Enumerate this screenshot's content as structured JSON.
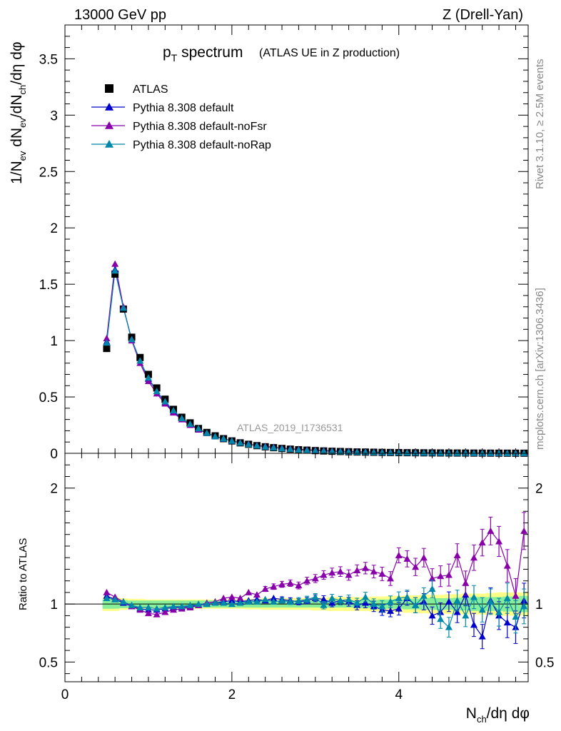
{
  "header": {
    "energy": "13000 GeV pp",
    "process": "Z (Drell-Yan)"
  },
  "side_labels": {
    "rivet": "Rivet 3.1.10, ≥ 2.5M events",
    "source": "mcplots.cern.ch [arXiv:1306.3436]"
  },
  "chart_data": [
    {
      "type": "scatter",
      "title_main": "p",
      "title_sub": "T",
      "title_word": " spectrum",
      "subtitle": "(ATLAS UE in Z production)",
      "analysis_id": "ATLAS_2019_I1736531",
      "ylabel_parts": [
        "1/N",
        "ev",
        " dN",
        "ev",
        "/dN",
        "ch",
        "/dη dφ"
      ],
      "xlim": [
        0,
        5.55
      ],
      "ylim": [
        0,
        3.8
      ],
      "yticks": [
        0,
        0.5,
        1,
        1.5,
        2,
        2.5,
        3,
        3.5
      ],
      "ytick_labels": [
        "0",
        "0.5",
        "1",
        "1.5",
        "2",
        "2.5",
        "3",
        "3.5"
      ],
      "x": [
        0.5,
        0.6,
        0.7,
        0.8,
        0.9,
        1.0,
        1.1,
        1.2,
        1.3,
        1.4,
        1.5,
        1.6,
        1.7,
        1.8,
        1.9,
        2.0,
        2.1,
        2.2,
        2.3,
        2.4,
        2.5,
        2.6,
        2.7,
        2.8,
        2.9,
        3.0,
        3.1,
        3.2,
        3.3,
        3.4,
        3.5,
        3.6,
        3.7,
        3.8,
        3.9,
        4.0,
        4.1,
        4.2,
        4.3,
        4.4,
        4.5,
        4.6,
        4.7,
        4.8,
        4.9,
        5.0,
        5.1,
        5.2,
        5.3,
        5.4,
        5.5
      ],
      "series": [
        {
          "name": "ATLAS",
          "color": "#000000",
          "marker": "square",
          "values": [
            0.93,
            1.59,
            1.28,
            1.03,
            0.85,
            0.7,
            0.58,
            0.48,
            0.39,
            0.32,
            0.27,
            0.22,
            0.185,
            0.155,
            0.13,
            0.11,
            0.093,
            0.08,
            0.068,
            0.058,
            0.05,
            0.043,
            0.037,
            0.032,
            0.028,
            0.024,
            0.021,
            0.018,
            0.016,
            0.014,
            0.012,
            0.011,
            0.0095,
            0.0083,
            0.0073,
            0.0064,
            0.0056,
            0.0049,
            0.0043,
            0.0038,
            0.0033,
            0.0029,
            0.0026,
            0.0023,
            0.002,
            0.0018,
            0.0016,
            0.0014,
            0.0012,
            0.0011,
            0.001
          ]
        },
        {
          "name": "Pythia 8.308 default",
          "color": "#0000cc",
          "marker": "triangle",
          "values": [
            0.99,
            1.63,
            1.29,
            1.01,
            0.82,
            0.66,
            0.55,
            0.45,
            0.37,
            0.31,
            0.26,
            0.21,
            0.18,
            0.15,
            0.128,
            0.11,
            0.093,
            0.08,
            0.069,
            0.059,
            0.051,
            0.044,
            0.038,
            0.033,
            0.029,
            0.025,
            0.022,
            0.019,
            0.016,
            0.014,
            0.012,
            0.011,
            0.0093,
            0.008,
            0.0071,
            0.0062,
            0.0055,
            0.0048,
            0.0042,
            0.0037,
            0.0032,
            0.0028,
            0.0025,
            0.0022,
            0.0019,
            0.0017,
            0.0015,
            0.0013,
            0.0011,
            0.001,
            0.0009
          ]
        },
        {
          "name": "Pythia 8.308 default-noFsr",
          "color": "#8800aa",
          "marker": "triangle",
          "values": [
            1.02,
            1.68,
            1.3,
            1.0,
            0.8,
            0.64,
            0.53,
            0.44,
            0.36,
            0.3,
            0.25,
            0.21,
            0.18,
            0.15,
            0.13,
            0.11,
            0.095,
            0.082,
            0.071,
            0.062,
            0.054,
            0.047,
            0.041,
            0.036,
            0.032,
            0.028,
            0.025,
            0.022,
            0.019,
            0.017,
            0.015,
            0.013,
            0.012,
            0.01,
            0.009,
            0.008,
            0.007,
            0.006,
            0.0055,
            0.0048,
            0.0042,
            0.0037,
            0.0033,
            0.0029,
            0.0026,
            0.0023,
            0.002,
            0.0018,
            0.0016,
            0.0014,
            0.0013
          ]
        },
        {
          "name": "Pythia 8.308 default-noRap",
          "color": "#0088aa",
          "marker": "triangle",
          "values": [
            0.98,
            1.62,
            1.29,
            1.01,
            0.82,
            0.67,
            0.55,
            0.46,
            0.38,
            0.31,
            0.26,
            0.22,
            0.18,
            0.15,
            0.13,
            0.11,
            0.093,
            0.079,
            0.068,
            0.058,
            0.05,
            0.043,
            0.037,
            0.032,
            0.028,
            0.024,
            0.021,
            0.018,
            0.016,
            0.014,
            0.012,
            0.011,
            0.0092,
            0.008,
            0.007,
            0.006,
            0.0054,
            0.0047,
            0.0042,
            0.0037,
            0.0031,
            0.0028,
            0.0024,
            0.0022,
            0.0019,
            0.0017,
            0.0015,
            0.0013,
            0.0011,
            0.001,
            0.0009
          ]
        }
      ]
    },
    {
      "type": "scatter",
      "ylabel": "Ratio to ATLAS",
      "xlabel_parts": [
        "N",
        "ch",
        "/dη dφ"
      ],
      "xlim": [
        0,
        5.55
      ],
      "ylim": [
        0.33,
        2.3
      ],
      "yticks": [
        0.5,
        1,
        2
      ],
      "ytick_labels": [
        "0.5",
        "1",
        "2"
      ],
      "xticks": [
        0,
        2,
        4
      ],
      "xtick_labels": [
        "0",
        "2",
        "4"
      ],
      "x": [
        0.5,
        0.6,
        0.7,
        0.8,
        0.9,
        1.0,
        1.1,
        1.2,
        1.3,
        1.4,
        1.5,
        1.6,
        1.7,
        1.8,
        1.9,
        2.0,
        2.1,
        2.2,
        2.3,
        2.4,
        2.5,
        2.6,
        2.7,
        2.8,
        2.9,
        3.0,
        3.1,
        3.2,
        3.3,
        3.4,
        3.5,
        3.6,
        3.7,
        3.8,
        3.9,
        4.0,
        4.1,
        4.2,
        4.3,
        4.4,
        4.5,
        4.6,
        4.7,
        4.8,
        4.9,
        5.0,
        5.1,
        5.2,
        5.3,
        5.4,
        5.5
      ],
      "band_green": [
        0.04,
        0.04,
        0.035,
        0.03,
        0.03,
        0.03,
        0.03,
        0.03,
        0.03,
        0.03,
        0.03,
        0.03,
        0.03,
        0.03,
        0.03,
        0.03,
        0.03,
        0.03,
        0.03,
        0.03,
        0.03,
        0.03,
        0.03,
        0.03,
        0.03,
        0.03,
        0.03,
        0.03,
        0.03,
        0.03,
        0.03,
        0.035,
        0.035,
        0.04,
        0.04,
        0.04,
        0.045,
        0.045,
        0.05,
        0.05,
        0.05,
        0.05,
        0.055,
        0.055,
        0.06,
        0.06,
        0.06,
        0.06,
        0.065,
        0.065,
        0.07
      ],
      "band_yellow": [
        0.06,
        0.06,
        0.05,
        0.045,
        0.045,
        0.04,
        0.04,
        0.04,
        0.04,
        0.04,
        0.04,
        0.04,
        0.04,
        0.04,
        0.04,
        0.04,
        0.04,
        0.045,
        0.045,
        0.05,
        0.05,
        0.05,
        0.05,
        0.05,
        0.05,
        0.055,
        0.055,
        0.06,
        0.06,
        0.06,
        0.06,
        0.06,
        0.065,
        0.065,
        0.07,
        0.07,
        0.075,
        0.075,
        0.08,
        0.08,
        0.08,
        0.085,
        0.085,
        0.09,
        0.09,
        0.09,
        0.095,
        0.1,
        0.1,
        0.1,
        0.1
      ],
      "series": [
        {
          "name": "Pythia 8.308 default",
          "color": "#0000cc",
          "values": [
            1.07,
            1.04,
            1.01,
            0.98,
            0.96,
            0.95,
            0.95,
            0.96,
            0.97,
            0.97,
            0.98,
            0.99,
            1.0,
            1.01,
            1.02,
            1.03,
            1.02,
            1.03,
            1.04,
            1.03,
            1.05,
            1.04,
            1.03,
            1.02,
            1.03,
            1.05,
            1.04,
            1.01,
            1.03,
            1.02,
            0.99,
            1.01,
            0.98,
            0.95,
            0.94,
            0.96,
            1.05,
            0.99,
            1.02,
            0.9,
            0.93,
            1.02,
            0.93,
            1.08,
            0.82,
            0.72,
            1.03,
            0.9,
            0.84,
            0.8,
            1.03
          ],
          "errors": [
            0.01,
            0.01,
            0.01,
            0.01,
            0.01,
            0.01,
            0.01,
            0.01,
            0.01,
            0.01,
            0.01,
            0.01,
            0.01,
            0.01,
            0.012,
            0.012,
            0.014,
            0.015,
            0.016,
            0.018,
            0.02,
            0.022,
            0.024,
            0.026,
            0.028,
            0.03,
            0.032,
            0.034,
            0.036,
            0.038,
            0.04,
            0.042,
            0.045,
            0.048,
            0.05,
            0.055,
            0.06,
            0.065,
            0.07,
            0.075,
            0.08,
            0.085,
            0.09,
            0.095,
            0.1,
            0.105,
            0.11,
            0.12,
            0.13,
            0.14,
            0.15
          ]
        },
        {
          "name": "Pythia 8.308 default-noFsr",
          "color": "#8800aa",
          "values": [
            1.1,
            1.06,
            1.02,
            0.98,
            0.95,
            0.92,
            0.91,
            0.93,
            0.95,
            0.96,
            0.97,
            0.99,
            1.01,
            1.02,
            1.05,
            1.06,
            1.05,
            1.1,
            1.08,
            1.13,
            1.15,
            1.17,
            1.18,
            1.16,
            1.2,
            1.22,
            1.25,
            1.27,
            1.28,
            1.25,
            1.29,
            1.31,
            1.28,
            1.26,
            1.22,
            1.42,
            1.39,
            1.32,
            1.4,
            1.22,
            1.24,
            1.25,
            1.42,
            1.18,
            1.4,
            1.53,
            1.63,
            1.54,
            1.33,
            1.07,
            1.63
          ],
          "errors": [
            0.01,
            0.01,
            0.01,
            0.01,
            0.01,
            0.01,
            0.01,
            0.01,
            0.01,
            0.01,
            0.01,
            0.01,
            0.01,
            0.012,
            0.013,
            0.014,
            0.016,
            0.018,
            0.02,
            0.022,
            0.024,
            0.026,
            0.028,
            0.03,
            0.032,
            0.035,
            0.037,
            0.04,
            0.042,
            0.045,
            0.048,
            0.05,
            0.055,
            0.058,
            0.06,
            0.065,
            0.07,
            0.075,
            0.08,
            0.085,
            0.09,
            0.095,
            0.1,
            0.105,
            0.11,
            0.115,
            0.12,
            0.13,
            0.14,
            0.15,
            0.16
          ]
        },
        {
          "name": "Pythia 8.308 default-noRap",
          "color": "#0088aa",
          "values": [
            1.05,
            1.04,
            1.02,
            0.99,
            0.97,
            0.97,
            0.96,
            0.97,
            0.98,
            0.98,
            0.99,
            1.0,
            1.0,
            1.01,
            1.01,
            1.0,
            1.01,
            1.02,
            1.02,
            1.04,
            1.02,
            1.03,
            1.02,
            1.03,
            1.04,
            1.06,
            0.99,
            1.05,
            1.03,
            1.04,
            1.01,
            1.06,
            1.0,
            0.98,
            1.02,
            1.05,
            1.06,
            0.99,
            1.07,
            1.13,
            0.87,
            0.8,
            1.03,
            0.9,
            1.06,
            0.95,
            1.02,
            0.93,
            1.05,
            0.89,
            0.98
          ],
          "errors": [
            0.01,
            0.01,
            0.01,
            0.01,
            0.01,
            0.01,
            0.01,
            0.01,
            0.01,
            0.01,
            0.01,
            0.01,
            0.01,
            0.012,
            0.012,
            0.013,
            0.014,
            0.015,
            0.016,
            0.018,
            0.02,
            0.022,
            0.024,
            0.026,
            0.028,
            0.03,
            0.032,
            0.034,
            0.036,
            0.038,
            0.04,
            0.042,
            0.045,
            0.048,
            0.05,
            0.055,
            0.06,
            0.065,
            0.07,
            0.075,
            0.08,
            0.085,
            0.09,
            0.095,
            0.1,
            0.105,
            0.11,
            0.12,
            0.13,
            0.14,
            0.15
          ]
        }
      ]
    }
  ]
}
